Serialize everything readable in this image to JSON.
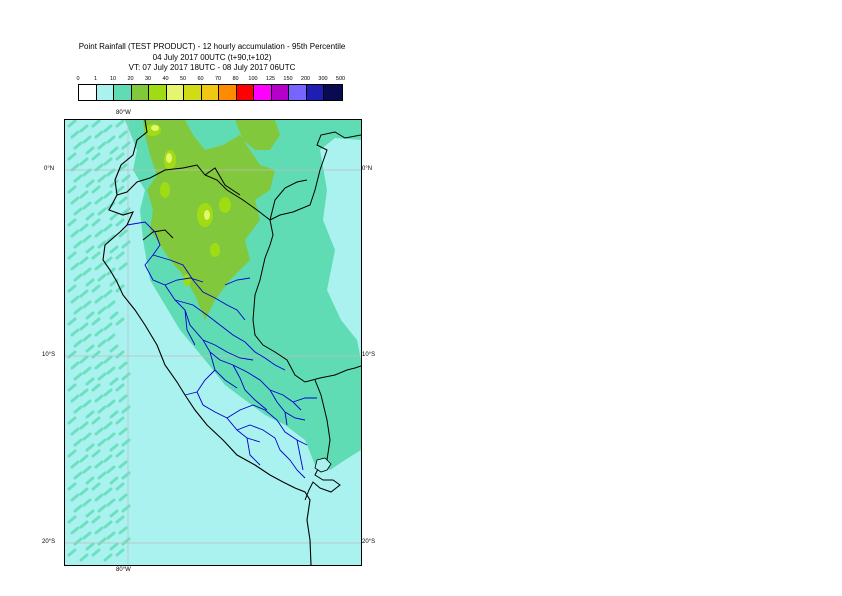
{
  "title": {
    "line1": "Point Rainfall (TEST PRODUCT) - 12 hourly accumulation - 95th Percentile",
    "line2": "04 July 2017 00UTC (t+90,t+102)",
    "line3": "VT: 07 July 2017 18UTC - 08 July 2017 06UTC"
  },
  "legend": {
    "labels": [
      "0",
      "1",
      "10",
      "20",
      "30",
      "40",
      "50",
      "60",
      "70",
      "80",
      "100",
      "125",
      "150",
      "200",
      "300",
      "500"
    ],
    "colors": [
      "#ffffff",
      "#aaf2ef",
      "#5fdcb4",
      "#82c83c",
      "#a0dc14",
      "#e6f56e",
      "#d2dc14",
      "#f0c814",
      "#ff8c00",
      "#ff0000",
      "#ff00ff",
      "#b400c8",
      "#7864ff",
      "#1e1eb4",
      "#0a0a50"
    ]
  },
  "map": {
    "lon_label_top": "80°W",
    "lon_label_bottom": "80°W",
    "lat_labels": [
      "0°N",
      "10°S",
      "20°S"
    ],
    "colors": {
      "ocean_light": "#aaf2ef",
      "teal": "#5fdcb4",
      "green": "#82c83c",
      "yellow_green": "#a0dc14",
      "yellow": "#e6f56e",
      "coast": "#000000",
      "borders": "#0000cc"
    }
  }
}
